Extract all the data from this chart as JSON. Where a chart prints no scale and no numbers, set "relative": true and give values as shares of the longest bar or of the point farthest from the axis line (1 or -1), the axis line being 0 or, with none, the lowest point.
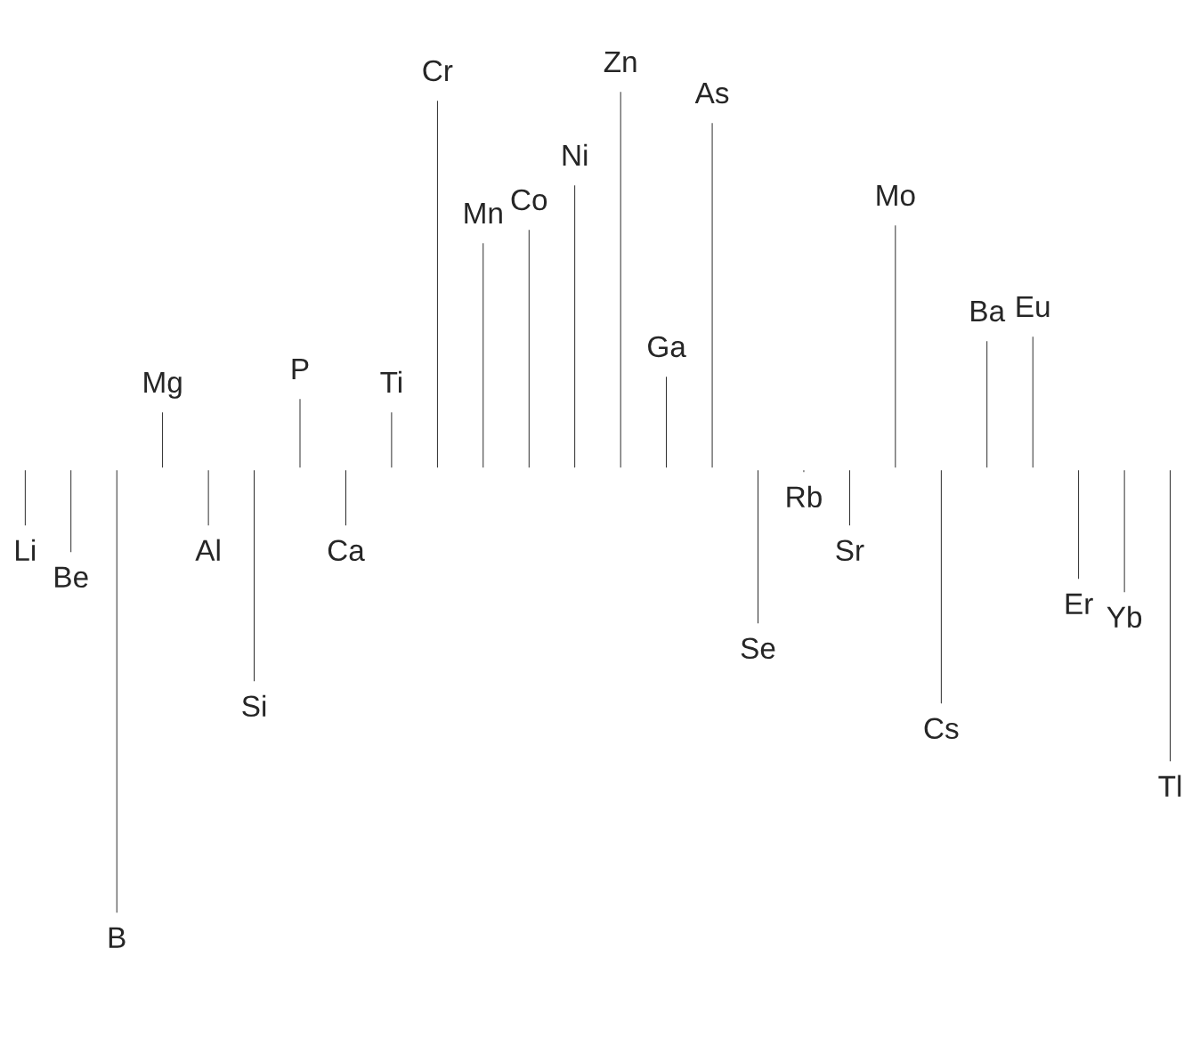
{
  "chart_data": {
    "type": "bar",
    "relative": true,
    "categories": [
      "Li",
      "Be",
      "B",
      "Mg",
      "Al",
      "Si",
      "P",
      "Ca",
      "Ti",
      "Cr",
      "Mn",
      "Co",
      "Ni",
      "Zn",
      "Ga",
      "As",
      "Se",
      "Rb",
      "Sr",
      "Mo",
      "Cs",
      "Ba",
      "Eu",
      "Er",
      "Yb",
      "Tl"
    ],
    "values": [
      -0.13,
      -0.19,
      -1,
      0.13,
      -0.13,
      -0.48,
      0.16,
      -0.13,
      0.13,
      0.83,
      0.51,
      0.54,
      0.64,
      0.85,
      0.21,
      0.78,
      -0.35,
      -0.01,
      -0.13,
      0.55,
      -0.53,
      0.29,
      0.3,
      -0.25,
      -0.28,
      -0.66
    ],
    "color": "#000000"
  }
}
